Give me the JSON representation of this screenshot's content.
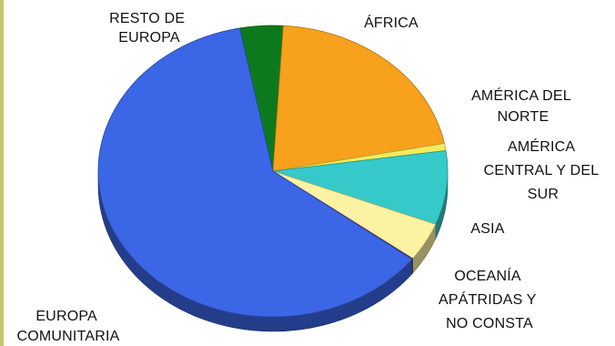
{
  "chart_data": {
    "type": "pie",
    "style": "3d",
    "title": "",
    "slices": [
      {
        "label": "RESTO DE EUROPA",
        "value": 4.0,
        "color": "#0c7a1c"
      },
      {
        "label": "ÁFRICA",
        "value": 21.0,
        "color": "#f7a11c"
      },
      {
        "label": "AMÉRICA DEL NORTE",
        "value": 0.8,
        "color": "#f3ec5a"
      },
      {
        "label": "AMÉRICA CENTRAL Y DEL SUR",
        "value": 8.2,
        "color": "#35c9c9"
      },
      {
        "label": "ASIA",
        "value": 4.3,
        "color": "#fbf2a2"
      },
      {
        "label": "OCEANÍA APÁTRIDAS Y NO CONSTA",
        "value": 0.1,
        "color": "#7a3a8c"
      },
      {
        "label": "EUROPA COMUNITARIA",
        "value": 61.6,
        "color": "#3b66e6"
      }
    ],
    "labels": {
      "resto_europa": [
        "RESTO  DE",
        "EUROPA"
      ],
      "africa": [
        "ÁFRICA"
      ],
      "america_norte": [
        "AMÉRICA  DEL",
        "NORTE"
      ],
      "america_central": [
        "AMÉRICA",
        "CENTRAL  Y DEL",
        "SUR"
      ],
      "asia": [
        "ASIA"
      ],
      "oceania": [
        "OCEANÍA",
        "APÁTRIDAS Y",
        "NO CONSTA"
      ],
      "europa_comunitaria": [
        "EUROPA",
        "COMUNITARIA"
      ]
    }
  }
}
